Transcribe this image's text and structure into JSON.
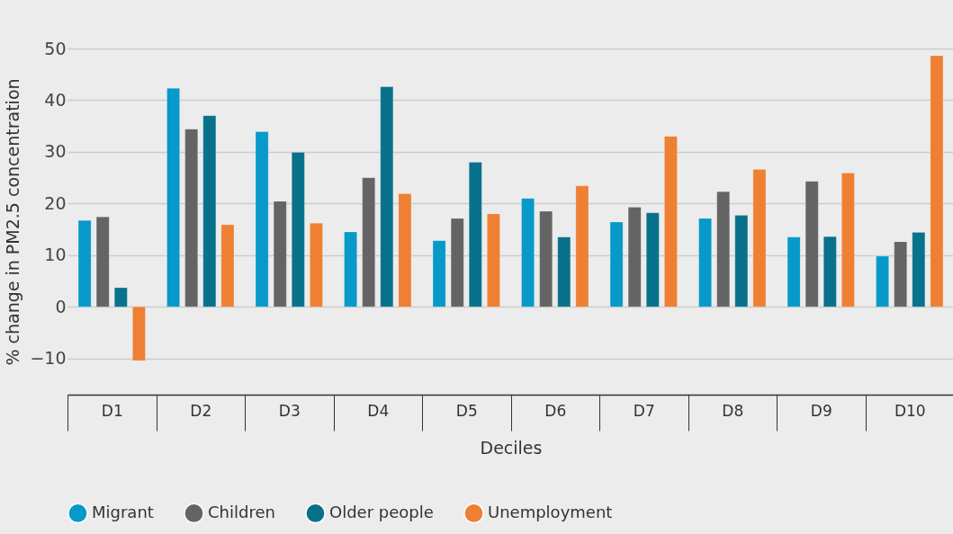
{
  "chart_data": {
    "type": "bar",
    "xlabel": "Deciles",
    "ylabel": "% change in PM2.5 concentration",
    "categories": [
      "D1",
      "D2",
      "D3",
      "D4",
      "D5",
      "D6",
      "D7",
      "D8",
      "D9",
      "D10"
    ],
    "series": [
      {
        "name": "Migrant",
        "color": "#0799c9",
        "values": [
          16.7,
          42.3,
          33.9,
          14.5,
          12.8,
          21.0,
          16.4,
          17.1,
          13.5,
          9.8
        ]
      },
      {
        "name": "Children",
        "color": "#646464",
        "values": [
          17.4,
          34.4,
          20.4,
          25.0,
          17.1,
          18.5,
          19.3,
          22.3,
          24.3,
          12.6
        ]
      },
      {
        "name": "Older people",
        "color": "#08718b",
        "values": [
          3.7,
          37.0,
          29.9,
          42.6,
          28.0,
          13.5,
          18.2,
          17.7,
          13.6,
          14.4
        ]
      },
      {
        "name": "Unemployment",
        "color": "#ee7f33",
        "values": [
          -10.4,
          15.9,
          16.2,
          21.9,
          18.0,
          23.4,
          33.0,
          26.6,
          25.9,
          48.6
        ]
      }
    ],
    "ylim": [
      -17,
      50
    ],
    "yticks": [
      -10,
      0,
      10,
      20,
      30,
      40,
      50
    ],
    "grid": "y",
    "legend": "bottom"
  }
}
